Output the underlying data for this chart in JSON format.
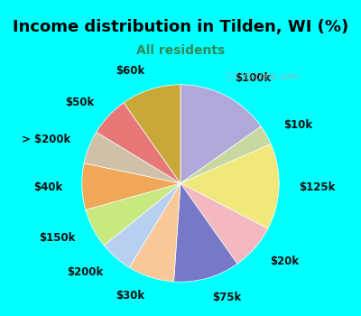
{
  "title": "Income distribution in Tilden, WI (%)",
  "subtitle": "All residents",
  "background_top": "#00FFFF",
  "background_chart": "#dff0e8",
  "slices": [
    {
      "label": "$100k",
      "value": 14,
      "color": "#b0a8d8"
    },
    {
      "label": "$10k",
      "value": 3,
      "color": "#c8d8a0"
    },
    {
      "label": "$125k",
      "value": 13,
      "color": "#f0e87a"
    },
    {
      "label": "$20k",
      "value": 7,
      "color": "#f4b8c0"
    },
    {
      "label": "$75k",
      "value": 10,
      "color": "#7878c8"
    },
    {
      "label": "$30k",
      "value": 7,
      "color": "#f8c898"
    },
    {
      "label": "$200k",
      "value": 5,
      "color": "#b8d0f0"
    },
    {
      "label": "$150k",
      "value": 6,
      "color": "#c8e880"
    },
    {
      "label": "$40k",
      "value": 7,
      "color": "#f0a858"
    },
    {
      "label": "> $200k",
      "value": 5,
      "color": "#d0c0a8"
    },
    {
      "label": "$50k",
      "value": 6,
      "color": "#e87878"
    },
    {
      "label": "$60k",
      "value": 9,
      "color": "#c8a838"
    }
  ],
  "title_fontsize": 13,
  "subtitle_fontsize": 10,
  "title_color": "#000000",
  "subtitle_color": "#2e8b57",
  "label_fontsize": 8.5
}
